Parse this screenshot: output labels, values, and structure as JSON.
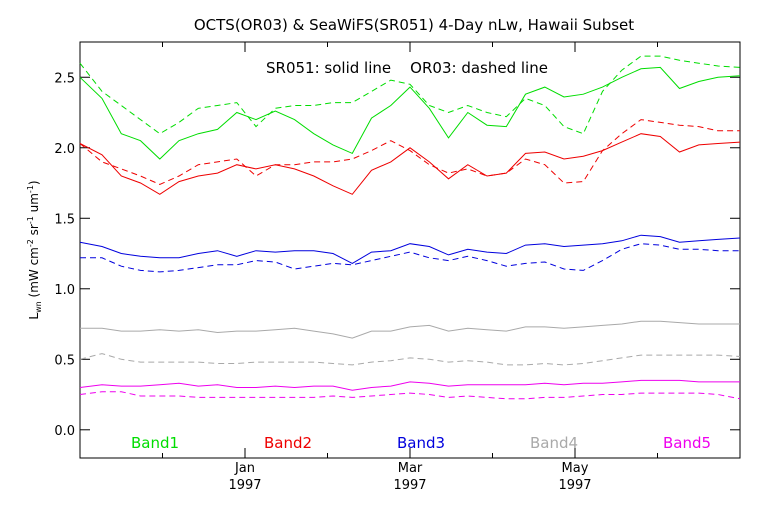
{
  "chart_data": {
    "type": "line",
    "title": "OCTS(OR03) & SeaWiFS(SR051) 4-Day nLw, Hawaii Subset",
    "annotation": "SR051: solid line    OR03: dashed line",
    "ylabel_main": "L",
    "ylabel_sub": "wn",
    "ylabel_rest": " (mW cm",
    "ylabel_sup1": "-2",
    "ylabel_mid": " sr",
    "ylabel_sup2": "-1",
    "ylabel_end": " um",
    "ylabel_sup3": "-1",
    "ylabel_close": ")",
    "ylim": [
      -0.2,
      2.75
    ],
    "yticks": [
      0.0,
      0.5,
      1.0,
      1.5,
      2.0,
      2.5
    ],
    "ytick_labels": [
      "0.0",
      "0.5",
      "1.0",
      "1.5",
      "2.0",
      "2.5"
    ],
    "xlim": [
      0,
      48
    ],
    "x_major_ticks": [
      {
        "x": 12,
        "label1": "Jan",
        "label2": "1997"
      },
      {
        "x": 24,
        "label1": "Mar",
        "label2": "1997"
      },
      {
        "x": 36,
        "label1": "May",
        "label2": "1997"
      }
    ],
    "x_minor_ticks": [
      6,
      18,
      30,
      42
    ],
    "x": [
      0,
      1.6,
      3.0,
      4.4,
      5.8,
      7.2,
      8.6,
      10.0,
      11.4,
      12.8,
      14.2,
      15.6,
      17.0,
      18.4,
      19.8,
      21.2,
      22.6,
      24.0,
      25.4,
      26.8,
      28.2,
      29.6,
      31.0,
      32.4,
      33.8,
      35.2,
      36.6,
      38.0,
      39.4,
      40.8,
      42.2,
      43.6,
      45.0,
      46.4,
      48.0
    ],
    "series": [
      {
        "name": "Band1",
        "color": "#00dd00",
        "style": "solid",
        "values": [
          2.5,
          2.35,
          2.1,
          2.05,
          1.92,
          2.05,
          2.1,
          2.13,
          2.25,
          2.2,
          2.26,
          2.2,
          2.1,
          2.02,
          1.96,
          2.21,
          2.3,
          2.43,
          2.28,
          2.07,
          2.25,
          2.16,
          2.15,
          2.38,
          2.43,
          2.36,
          2.38,
          2.43,
          2.5,
          2.56,
          2.57,
          2.42,
          2.47,
          2.5,
          2.51
        ]
      },
      {
        "name": "Band1",
        "color": "#00dd00",
        "style": "dashed",
        "values": [
          2.6,
          2.4,
          2.3,
          2.2,
          2.1,
          2.18,
          2.28,
          2.3,
          2.32,
          2.15,
          2.28,
          2.3,
          2.3,
          2.32,
          2.32,
          2.4,
          2.48,
          2.45,
          2.3,
          2.25,
          2.3,
          2.25,
          2.22,
          2.35,
          2.3,
          2.15,
          2.1,
          2.4,
          2.55,
          2.65,
          2.65,
          2.62,
          2.6,
          2.58,
          2.57
        ]
      },
      {
        "name": "Band2",
        "color": "#ee0000",
        "style": "solid",
        "values": [
          2.03,
          1.95,
          1.8,
          1.75,
          1.67,
          1.76,
          1.8,
          1.82,
          1.88,
          1.85,
          1.88,
          1.85,
          1.8,
          1.73,
          1.67,
          1.84,
          1.9,
          2.0,
          1.9,
          1.78,
          1.88,
          1.8,
          1.82,
          1.96,
          1.97,
          1.92,
          1.94,
          1.98,
          2.04,
          2.1,
          2.08,
          1.97,
          2.02,
          2.03,
          2.04
        ]
      },
      {
        "name": "Band2",
        "color": "#ee0000",
        "style": "dashed",
        "values": [
          2.03,
          1.9,
          1.85,
          1.8,
          1.74,
          1.8,
          1.88,
          1.9,
          1.92,
          1.8,
          1.88,
          1.88,
          1.9,
          1.9,
          1.92,
          1.98,
          2.05,
          1.98,
          1.88,
          1.82,
          1.85,
          1.8,
          1.82,
          1.92,
          1.88,
          1.75,
          1.76,
          1.98,
          2.1,
          2.2,
          2.18,
          2.16,
          2.15,
          2.12,
          2.12
        ]
      },
      {
        "name": "Band3",
        "color": "#0000dd",
        "style": "solid",
        "values": [
          1.33,
          1.3,
          1.25,
          1.23,
          1.22,
          1.22,
          1.25,
          1.27,
          1.23,
          1.27,
          1.26,
          1.27,
          1.27,
          1.25,
          1.18,
          1.26,
          1.27,
          1.32,
          1.3,
          1.24,
          1.28,
          1.26,
          1.25,
          1.31,
          1.32,
          1.3,
          1.31,
          1.32,
          1.34,
          1.38,
          1.37,
          1.33,
          1.34,
          1.35,
          1.36
        ]
      },
      {
        "name": "Band3",
        "color": "#0000dd",
        "style": "dashed",
        "values": [
          1.22,
          1.22,
          1.16,
          1.13,
          1.12,
          1.13,
          1.15,
          1.17,
          1.17,
          1.2,
          1.19,
          1.14,
          1.16,
          1.18,
          1.17,
          1.2,
          1.23,
          1.26,
          1.22,
          1.2,
          1.23,
          1.2,
          1.16,
          1.18,
          1.19,
          1.14,
          1.13,
          1.2,
          1.28,
          1.32,
          1.31,
          1.28,
          1.28,
          1.27,
          1.27
        ]
      },
      {
        "name": "Band4",
        "color": "#a9a9a9",
        "style": "solid",
        "values": [
          0.72,
          0.72,
          0.7,
          0.7,
          0.71,
          0.7,
          0.71,
          0.69,
          0.7,
          0.7,
          0.71,
          0.72,
          0.7,
          0.68,
          0.65,
          0.7,
          0.7,
          0.73,
          0.74,
          0.7,
          0.72,
          0.71,
          0.7,
          0.73,
          0.73,
          0.72,
          0.73,
          0.74,
          0.75,
          0.77,
          0.77,
          0.76,
          0.75,
          0.75,
          0.75
        ]
      },
      {
        "name": "Band4",
        "color": "#a9a9a9",
        "style": "dashed",
        "values": [
          0.5,
          0.54,
          0.5,
          0.48,
          0.48,
          0.48,
          0.48,
          0.47,
          0.47,
          0.48,
          0.48,
          0.48,
          0.48,
          0.47,
          0.46,
          0.48,
          0.49,
          0.51,
          0.5,
          0.48,
          0.49,
          0.48,
          0.46,
          0.46,
          0.47,
          0.46,
          0.47,
          0.49,
          0.51,
          0.53,
          0.53,
          0.53,
          0.53,
          0.53,
          0.52
        ]
      },
      {
        "name": "Band5",
        "color": "#ee00ee",
        "style": "solid",
        "values": [
          0.3,
          0.32,
          0.31,
          0.31,
          0.32,
          0.33,
          0.31,
          0.32,
          0.3,
          0.3,
          0.31,
          0.3,
          0.31,
          0.31,
          0.28,
          0.3,
          0.31,
          0.34,
          0.33,
          0.31,
          0.32,
          0.32,
          0.32,
          0.32,
          0.33,
          0.32,
          0.33,
          0.33,
          0.34,
          0.35,
          0.35,
          0.35,
          0.34,
          0.34,
          0.34
        ]
      },
      {
        "name": "Band5",
        "color": "#ee00ee",
        "style": "dashed",
        "values": [
          0.25,
          0.27,
          0.27,
          0.24,
          0.24,
          0.24,
          0.23,
          0.23,
          0.23,
          0.23,
          0.23,
          0.23,
          0.23,
          0.24,
          0.23,
          0.24,
          0.25,
          0.26,
          0.25,
          0.23,
          0.24,
          0.23,
          0.22,
          0.22,
          0.23,
          0.23,
          0.24,
          0.25,
          0.25,
          0.26,
          0.26,
          0.26,
          0.26,
          0.25,
          0.22
        ]
      }
    ],
    "band_labels": [
      {
        "label": "Band1",
        "color": "#00dd00"
      },
      {
        "label": "Band2",
        "color": "#ee0000"
      },
      {
        "label": "Band3",
        "color": "#0000dd"
      },
      {
        "label": "Band4",
        "color": "#a9a9a9"
      },
      {
        "label": "Band5",
        "color": "#ee00ee"
      }
    ],
    "grid": false
  }
}
